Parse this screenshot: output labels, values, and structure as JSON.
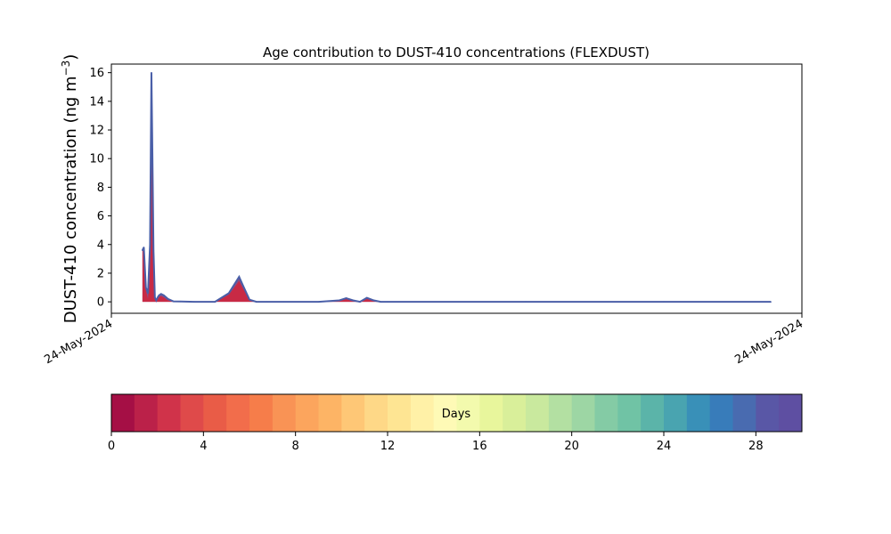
{
  "chart_data": {
    "type": "area",
    "title": "Age contribution to DUST-410 concentrations (FLEXDUST)",
    "ylabel": "DUST-410 concentration (ng m",
    "ylabel_sup": "−3",
    "ylabel_close": ")",
    "xlabel": "",
    "x_tick_labels": [
      "24-May-2024",
      "24-May-2024"
    ],
    "y_ticks": [
      0,
      2,
      4,
      6,
      8,
      10,
      12,
      14,
      16
    ],
    "ylim": [
      -0.8,
      16.6
    ],
    "xlim": [
      0,
      100
    ],
    "x": [
      4.5,
      4.7,
      5.0,
      5.3,
      5.6,
      5.8,
      5.95,
      6.1,
      6.3,
      6.5,
      6.7,
      6.9,
      7.2,
      7.6,
      8.2,
      9.0,
      10.0,
      12.0,
      15.0,
      17.0,
      18.5,
      19.0,
      20.0,
      21.0,
      22.5,
      25.0,
      30.0,
      33.0,
      34.0,
      35.0,
      36.0,
      37.0,
      38.0,
      39.0,
      40.0,
      60.0,
      80.0,
      95.5
    ],
    "total": [
      3.6,
      3.8,
      1.0,
      0.6,
      4.0,
      16.0,
      10.0,
      3.6,
      0.3,
      0.1,
      0.3,
      0.45,
      0.55,
      0.45,
      0.2,
      0.03,
      0.02,
      0.0,
      0.0,
      0.6,
      1.75,
      1.2,
      0.15,
      0.0,
      0.0,
      0.0,
      0.0,
      0.1,
      0.25,
      0.1,
      0.0,
      0.28,
      0.1,
      0.0,
      0.0,
      0.0,
      0.0,
      0.0
    ],
    "young_fraction": [
      3.6,
      3.6,
      0.8,
      0.2,
      2.5,
      10.0,
      7.5,
      2.0,
      0.2,
      0.05,
      0.2,
      0.35,
      0.4,
      0.3,
      0.1,
      0.02,
      0.01,
      0.0,
      0.0,
      0.5,
      1.45,
      1.0,
      0.1,
      0.0,
      0.0,
      0.0,
      0.0,
      0.05,
      0.2,
      0.05,
      0.0,
      0.2,
      0.05,
      0.0,
      0.0,
      0.0,
      0.0,
      0.0
    ],
    "colorbar": {
      "label": "Days",
      "min": 0,
      "max": 30,
      "ticks": [
        0,
        4,
        8,
        12,
        16,
        20,
        24,
        28
      ],
      "colors": [
        "#a50f45",
        "#bb2149",
        "#d0334a",
        "#df4a4a",
        "#e95c47",
        "#f26d4b",
        "#f67d4a",
        "#f99355",
        "#fca55d",
        "#fdb465",
        "#fec776",
        "#fed887",
        "#fee593",
        "#fff1a7",
        "#fefab6",
        "#f3faad",
        "#e8f69c",
        "#d9ef9a",
        "#c9e99e",
        "#b3e0a2",
        "#9dd6a4",
        "#84cba5",
        "#70c3a5",
        "#5bb4a9",
        "#49a4b0",
        "#3990b8",
        "#387cba",
        "#496bb0",
        "#5957a6",
        "#5e4fa2"
      ]
    },
    "colors": {
      "line": "#4a5fa8",
      "fill_young": "#c82a45",
      "fill_mid": "#8a4f86"
    }
  }
}
